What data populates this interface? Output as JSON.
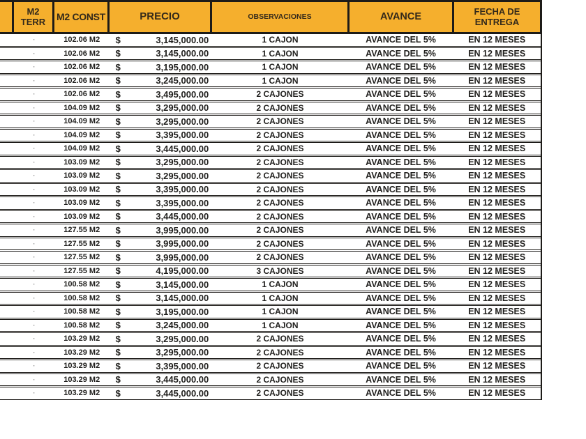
{
  "table": {
    "columns": [
      {
        "label": ""
      },
      {
        "label": "M2\nTERR"
      },
      {
        "label": "M2 CONST"
      },
      {
        "label": "PRECIO"
      },
      {
        "label": "OBSERVACIONES"
      },
      {
        "label": "AVANCE"
      },
      {
        "label": "FECHA DE\nENTREGA"
      }
    ],
    "currency_symbol": "$",
    "rows": [
      {
        "terr": "·",
        "m2_const": "102.06 M2",
        "precio": "3,145,000.00",
        "observaciones": "1 CAJON",
        "avance": "AVANCE DEL 5%",
        "fecha_entrega": "EN 12 MESES"
      },
      {
        "terr": "·",
        "m2_const": "102.06 M2",
        "precio": "3,145,000.00",
        "observaciones": "1 CAJON",
        "avance": "AVANCE DEL 5%",
        "fecha_entrega": "EN 12 MESES"
      },
      {
        "terr": "·",
        "m2_const": "102.06 M2",
        "precio": "3,195,000.00",
        "observaciones": "1 CAJON",
        "avance": "AVANCE DEL 5%",
        "fecha_entrega": "EN 12 MESES"
      },
      {
        "terr": "·",
        "m2_const": "102.06 M2",
        "precio": "3,245,000.00",
        "observaciones": "1 CAJON",
        "avance": "AVANCE DEL 5%",
        "fecha_entrega": "EN 12 MESES"
      },
      {
        "terr": "·",
        "m2_const": "102.06 M2",
        "precio": "3,495,000.00",
        "observaciones": "2 CAJONES",
        "avance": "AVANCE DEL 5%",
        "fecha_entrega": "EN 12 MESES"
      },
      {
        "terr": "·",
        "m2_const": "104.09 M2",
        "precio": "3,295,000.00",
        "observaciones": "2 CAJONES",
        "avance": "AVANCE DEL 5%",
        "fecha_entrega": "EN 12 MESES"
      },
      {
        "terr": "·",
        "m2_const": "104.09 M2",
        "precio": "3,295,000.00",
        "observaciones": "2 CAJONES",
        "avance": "AVANCE DEL 5%",
        "fecha_entrega": "EN 12 MESES"
      },
      {
        "terr": "·",
        "m2_const": "104.09 M2",
        "precio": "3,395,000.00",
        "observaciones": "2 CAJONES",
        "avance": "AVANCE DEL 5%",
        "fecha_entrega": "EN 12 MESES"
      },
      {
        "terr": "·",
        "m2_const": "104.09 M2",
        "precio": "3,445,000.00",
        "observaciones": "2 CAJONES",
        "avance": "AVANCE DEL 5%",
        "fecha_entrega": "EN 12 MESES"
      },
      {
        "terr": "·",
        "m2_const": "103.09 M2",
        "precio": "3,295,000.00",
        "observaciones": "2 CAJONES",
        "avance": "AVANCE DEL 5%",
        "fecha_entrega": "EN 12 MESES"
      },
      {
        "terr": "·",
        "m2_const": "103.09 M2",
        "precio": "3,295,000.00",
        "observaciones": "2 CAJONES",
        "avance": "AVANCE DEL 5%",
        "fecha_entrega": "EN 12 MESES"
      },
      {
        "terr": "·",
        "m2_const": "103.09 M2",
        "precio": "3,395,000.00",
        "observaciones": "2 CAJONES",
        "avance": "AVANCE DEL 5%",
        "fecha_entrega": "EN 12 MESES"
      },
      {
        "terr": "·",
        "m2_const": "103.09 M2",
        "precio": "3,395,000.00",
        "observaciones": "2 CAJONES",
        "avance": "AVANCE DEL 5%",
        "fecha_entrega": "EN 12 MESES"
      },
      {
        "terr": "·",
        "m2_const": "103.09 M2",
        "precio": "3,445,000.00",
        "observaciones": "2 CAJONES",
        "avance": "AVANCE DEL 5%",
        "fecha_entrega": "EN 12 MESES"
      },
      {
        "terr": "·",
        "m2_const": "127.55 M2",
        "precio": "3,995,000.00",
        "observaciones": "2 CAJONES",
        "avance": "AVANCE DEL 5%",
        "fecha_entrega": "EN 12 MESES"
      },
      {
        "terr": "·",
        "m2_const": "127.55 M2",
        "precio": "3,995,000.00",
        "observaciones": "2 CAJONES",
        "avance": "AVANCE DEL 5%",
        "fecha_entrega": "EN 12 MESES"
      },
      {
        "terr": "·",
        "m2_const": "127.55 M2",
        "precio": "3,995,000.00",
        "observaciones": "2 CAJONES",
        "avance": "AVANCE DEL 5%",
        "fecha_entrega": "EN 12 MESES"
      },
      {
        "terr": "·",
        "m2_const": "127.55 M2",
        "precio": "4,195,000.00",
        "observaciones": "3 CAJONES",
        "avance": "AVANCE DEL 5%",
        "fecha_entrega": "EN 12 MESES"
      },
      {
        "terr": "·",
        "m2_const": "100.58 M2",
        "precio": "3,145,000.00",
        "observaciones": "1 CAJON",
        "avance": "AVANCE DEL 5%",
        "fecha_entrega": "EN 12 MESES"
      },
      {
        "terr": "·",
        "m2_const": "100.58 M2",
        "precio": "3,145,000.00",
        "observaciones": "1 CAJON",
        "avance": "AVANCE DEL 5%",
        "fecha_entrega": "EN 12 MESES"
      },
      {
        "terr": "·",
        "m2_const": "100.58 M2",
        "precio": "3,195,000.00",
        "observaciones": "1 CAJON",
        "avance": "AVANCE DEL 5%",
        "fecha_entrega": "EN 12 MESES"
      },
      {
        "terr": "·",
        "m2_const": "100.58 M2",
        "precio": "3,245,000.00",
        "observaciones": "1 CAJON",
        "avance": "AVANCE DEL 5%",
        "fecha_entrega": "EN 12 MESES"
      },
      {
        "terr": "·",
        "m2_const": "103.29 M2",
        "precio": "3,295,000.00",
        "observaciones": "2 CAJONES",
        "avance": "AVANCE DEL 5%",
        "fecha_entrega": "EN 12 MESES"
      },
      {
        "terr": "·",
        "m2_const": "103.29 M2",
        "precio": "3,295,000.00",
        "observaciones": "2 CAJONES",
        "avance": "AVANCE DEL 5%",
        "fecha_entrega": "EN 12 MESES"
      },
      {
        "terr": "·",
        "m2_const": "103.29 M2",
        "precio": "3,395,000.00",
        "observaciones": "2 CAJONES",
        "avance": "AVANCE DEL 5%",
        "fecha_entrega": "EN 12 MESES"
      },
      {
        "terr": "·",
        "m2_const": "103.29 M2",
        "precio": "3,445,000.00",
        "observaciones": "2 CAJONES",
        "avance": "AVANCE DEL 5%",
        "fecha_entrega": "EN 12 MESES"
      },
      {
        "terr": "·",
        "m2_const": "103.29 M2",
        "precio": "3,445,000.00",
        "observaciones": "2 CAJONES",
        "avance": "AVANCE DEL 5%",
        "fecha_entrega": "EN 12 MESES"
      }
    ]
  },
  "colors": {
    "header_bg": "#F5AF2D",
    "header_text": "#33291A",
    "border": "#1D1B18",
    "row_text": "#21201E"
  }
}
